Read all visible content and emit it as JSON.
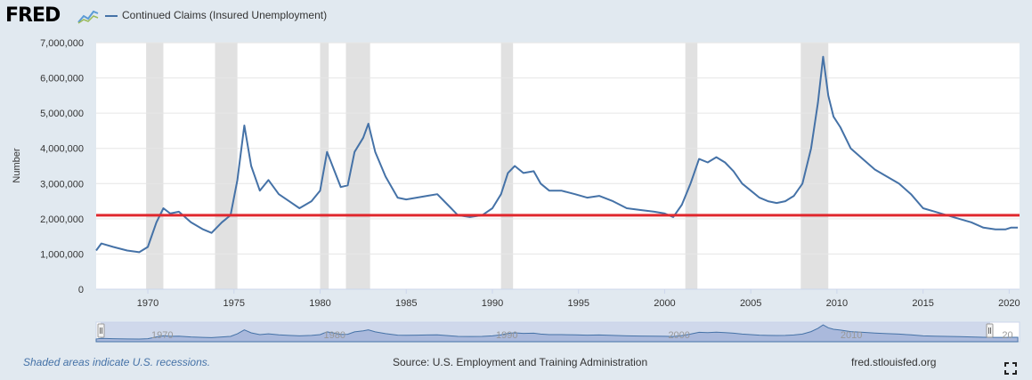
{
  "header": {
    "logo_text": "FRED",
    "logo_icon": "fred-chart-logo-icon",
    "legend_label": "Continued Claims (Insured Unemployment)"
  },
  "footer": {
    "note": "Shaded areas indicate U.S. recessions.",
    "source": "Source: U.S. Employment and Training Administration",
    "site": "fred.stlouisfed.org",
    "expand_icon": "fullscreen-expand-icon"
  },
  "colors": {
    "series": "#4572a7",
    "reference_line": "#e0282e",
    "recession": "#e1e1e1",
    "navigator_fill": "#c7d1e8"
  },
  "chart_data": {
    "type": "line",
    "ylabel": "Number",
    "ylim": [
      0,
      7000000
    ],
    "xlim": [
      1967.0,
      2020.6
    ],
    "yticks": [
      0,
      1000000,
      2000000,
      3000000,
      4000000,
      5000000,
      6000000,
      7000000
    ],
    "ytick_labels": [
      "0",
      "1,000,000",
      "2,000,000",
      "3,000,000",
      "4,000,000",
      "5,000,000",
      "6,000,000",
      "7,000,000"
    ],
    "xticks": [
      1970,
      1975,
      1980,
      1985,
      1990,
      1995,
      2000,
      2005,
      2010,
      2015,
      2020
    ],
    "xtick_labels": [
      "1970",
      "1975",
      "1980",
      "1985",
      "1990",
      "1995",
      "2000",
      "2005",
      "2010",
      "2015",
      "2020"
    ],
    "grid": "horizontal",
    "reference_line": 2100000,
    "recessions": [
      [
        1969.9,
        1970.9
      ],
      [
        1973.9,
        1975.2
      ],
      [
        1980.0,
        1980.5
      ],
      [
        1981.5,
        1982.9
      ],
      [
        1990.5,
        1991.2
      ],
      [
        2001.2,
        2001.9
      ],
      [
        2007.9,
        2009.5
      ]
    ],
    "navigator_labels": [
      "1970",
      "1980",
      "1990",
      "2000",
      "2010",
      "20"
    ],
    "series": [
      {
        "name": "Continued Claims (Insured Unemployment)",
        "x": [
          1967.0,
          1967.3,
          1968.0,
          1968.8,
          1969.5,
          1970.0,
          1970.5,
          1970.9,
          1971.3,
          1971.8,
          1972.5,
          1973.2,
          1973.7,
          1974.3,
          1974.8,
          1975.2,
          1975.6,
          1976.0,
          1976.5,
          1977.0,
          1977.6,
          1978.2,
          1978.8,
          1979.5,
          1980.0,
          1980.4,
          1980.8,
          1981.2,
          1981.6,
          1982.0,
          1982.5,
          1982.8,
          1983.2,
          1983.8,
          1984.5,
          1985.0,
          1985.6,
          1986.2,
          1986.8,
          1987.4,
          1988.0,
          1988.7,
          1989.4,
          1990.0,
          1990.5,
          1990.9,
          1991.3,
          1991.8,
          1992.4,
          1992.8,
          1993.3,
          1994.0,
          1994.8,
          1995.5,
          1996.2,
          1997.0,
          1997.8,
          1998.6,
          1999.4,
          2000.0,
          2000.5,
          2001.0,
          2001.5,
          2002.0,
          2002.5,
          2003.0,
          2003.5,
          2004.0,
          2004.5,
          2005.0,
          2005.5,
          2006.0,
          2006.5,
          2007.0,
          2007.5,
          2008.0,
          2008.5,
          2008.9,
          2009.2,
          2009.5,
          2009.8,
          2010.2,
          2010.8,
          2011.5,
          2012.2,
          2012.9,
          2013.6,
          2014.3,
          2015.0,
          2015.7,
          2016.4,
          2017.1,
          2017.8,
          2018.5,
          2019.2,
          2019.8,
          2020.1,
          2020.5
        ],
        "y": [
          1100000,
          1300000,
          1200000,
          1100000,
          1050000,
          1200000,
          1900000,
          2300000,
          2150000,
          2200000,
          1900000,
          1700000,
          1600000,
          1900000,
          2100000,
          3100000,
          4650000,
          3500000,
          2800000,
          3100000,
          2700000,
          2500000,
          2300000,
          2500000,
          2800000,
          3900000,
          3400000,
          2900000,
          2950000,
          3900000,
          4300000,
          4700000,
          3900000,
          3200000,
          2600000,
          2550000,
          2600000,
          2650000,
          2700000,
          2400000,
          2100000,
          2050000,
          2100000,
          2300000,
          2700000,
          3300000,
          3500000,
          3300000,
          3350000,
          3000000,
          2800000,
          2800000,
          2700000,
          2600000,
          2650000,
          2500000,
          2300000,
          2250000,
          2200000,
          2150000,
          2050000,
          2400000,
          3000000,
          3700000,
          3600000,
          3750000,
          3600000,
          3350000,
          3000000,
          2800000,
          2600000,
          2500000,
          2450000,
          2500000,
          2650000,
          3000000,
          4000000,
          5300000,
          6600000,
          5500000,
          4900000,
          4600000,
          4000000,
          3700000,
          3400000,
          3200000,
          3000000,
          2700000,
          2300000,
          2200000,
          2100000,
          2000000,
          1900000,
          1750000,
          1700000,
          1700000,
          1750000,
          1750000
        ]
      }
    ]
  }
}
